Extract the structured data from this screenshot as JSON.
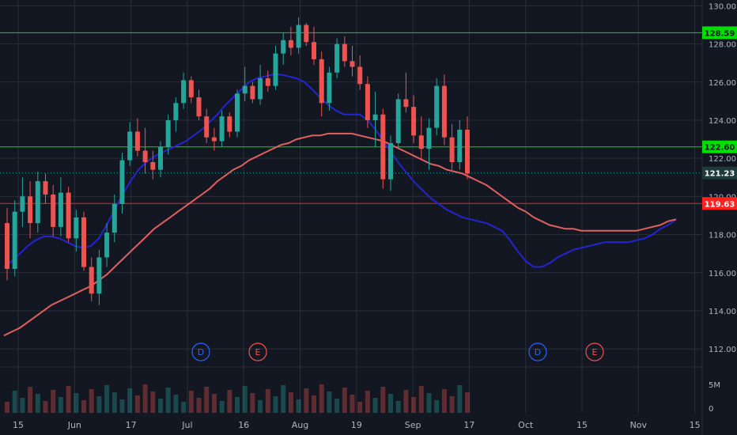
{
  "chart_data": {
    "type": "candlestick",
    "title": "",
    "xlabel": "",
    "ylabel": "",
    "ylim": [
      111.3,
      130.1
    ],
    "y_ticks": [
      112,
      114,
      116,
      118,
      120,
      122,
      124,
      126,
      128,
      130
    ],
    "y_tick_labels": [
      "112.00",
      "114.00",
      "116.00",
      "118.00",
      "120.00",
      "122.00",
      "124.00",
      "126.00",
      "128.00",
      "130.00"
    ],
    "x_tick_labels": [
      "15",
      "Jun",
      "17",
      "Jul",
      "16",
      "Aug",
      "19",
      "Sep",
      "17",
      "Oct",
      "15",
      "Nov",
      "15"
    ],
    "grid": true,
    "colors": {
      "background": "#131722",
      "up": "#26a69a",
      "down": "#ef5350",
      "grid": "#2a2e39",
      "axis_text": "#b2b5be"
    },
    "horizontal_levels": [
      {
        "label": "128.59",
        "value": 128.59,
        "color": "#00e000"
      },
      {
        "label": "122.60",
        "value": 122.6,
        "color": "#00e000"
      },
      {
        "label": "119.63",
        "value": 119.63,
        "color": "#ff2020"
      }
    ],
    "last_price": {
      "label": "121.23",
      "value": 121.23,
      "color": "#26a69a"
    },
    "moving_averages": [
      {
        "color": "#2424d0",
        "values": [
          116.3,
          116.6,
          117,
          117.4,
          117.7,
          117.9,
          117.9,
          117.8,
          117.6,
          117.4,
          117.3,
          117.4,
          117.8,
          118.5,
          119.3,
          120.1,
          120.8,
          121.4,
          121.8,
          122.1,
          122.3,
          122.5,
          122.7,
          122.9,
          123.2,
          123.5,
          123.9,
          124.3,
          124.8,
          125.2,
          125.6,
          126,
          126.2,
          126.3,
          126.4,
          126.4,
          126.3,
          126.2,
          126,
          125.6,
          125.2,
          124.8,
          124.5,
          124.3,
          124.3,
          124.3,
          124,
          123.5,
          122.9,
          122.3,
          121.7,
          121.2,
          120.7,
          120.3,
          119.9,
          119.6,
          119.3,
          119.1,
          118.9,
          118.8,
          118.7,
          118.6,
          118.4,
          118.2,
          117.7,
          117.1,
          116.6,
          116.3,
          116.3,
          116.5,
          116.8,
          117,
          117.2,
          117.3,
          117.4,
          117.5,
          117.6,
          117.6,
          117.6,
          117.6,
          117.7,
          117.8,
          118,
          118.3,
          118.5,
          118.8
        ]
      },
      {
        "color": "#e06060",
        "values": [
          112.7,
          112.9,
          113.1,
          113.4,
          113.7,
          114,
          114.3,
          114.5,
          114.7,
          114.9,
          115.1,
          115.3,
          115.6,
          115.9,
          116.3,
          116.7,
          117.1,
          117.5,
          117.9,
          118.3,
          118.6,
          118.9,
          119.2,
          119.5,
          119.8,
          120.1,
          120.4,
          120.8,
          121.1,
          121.4,
          121.6,
          121.9,
          122.1,
          122.3,
          122.5,
          122.7,
          122.8,
          123,
          123.1,
          123.2,
          123.2,
          123.3,
          123.3,
          123.3,
          123.3,
          123.2,
          123.1,
          123,
          122.9,
          122.7,
          122.5,
          122.3,
          122.1,
          121.9,
          121.7,
          121.6,
          121.4,
          121.3,
          121.2,
          121,
          120.8,
          120.6,
          120.3,
          120,
          119.7,
          119.4,
          119.2,
          118.9,
          118.7,
          118.5,
          118.4,
          118.3,
          118.3,
          118.2,
          118.2,
          118.2,
          118.2,
          118.2,
          118.2,
          118.2,
          118.2,
          118.3,
          118.4,
          118.5,
          118.7,
          118.8
        ]
      }
    ],
    "candles": [
      [
        118.6,
        119.4,
        115.6,
        116.2
      ],
      [
        116.2,
        119.8,
        115.8,
        119.2
      ],
      [
        119.2,
        121.0,
        118.4,
        120.0
      ],
      [
        120.0,
        120.8,
        117.8,
        118.6
      ],
      [
        118.6,
        121.3,
        118.1,
        120.8
      ],
      [
        120.8,
        121.2,
        119.6,
        120.1
      ],
      [
        120.1,
        120.6,
        117.9,
        118.4
      ],
      [
        118.4,
        121.0,
        117.9,
        120.2
      ],
      [
        120.2,
        120.5,
        117.6,
        117.8
      ],
      [
        117.8,
        119.3,
        117.1,
        118.9
      ],
      [
        118.9,
        119.2,
        116.1,
        116.3
      ],
      [
        116.3,
        116.8,
        114.5,
        114.9
      ],
      [
        114.9,
        117.2,
        114.3,
        116.8
      ],
      [
        116.8,
        118.6,
        116.3,
        118.1
      ],
      [
        118.1,
        120.1,
        117.6,
        119.6
      ],
      [
        119.6,
        122.3,
        119.1,
        121.9
      ],
      [
        121.9,
        123.9,
        121.6,
        123.4
      ],
      [
        123.4,
        124.1,
        122.1,
        122.4
      ],
      [
        122.4,
        123.6,
        121.2,
        121.8
      ],
      [
        121.8,
        122.4,
        120.9,
        121.4
      ],
      [
        121.4,
        122.9,
        121.0,
        122.6
      ],
      [
        122.6,
        124.3,
        122.2,
        124.0
      ],
      [
        124.0,
        125.2,
        123.4,
        124.9
      ],
      [
        124.9,
        126.5,
        124.6,
        126.1
      ],
      [
        126.1,
        126.3,
        124.9,
        125.2
      ],
      [
        125.2,
        125.6,
        124.0,
        124.2
      ],
      [
        124.2,
        124.6,
        122.8,
        123.1
      ],
      [
        123.1,
        123.6,
        122.4,
        122.9
      ],
      [
        122.9,
        124.5,
        122.6,
        124.2
      ],
      [
        124.2,
        124.4,
        123.1,
        123.4
      ],
      [
        123.4,
        125.6,
        123.1,
        125.4
      ],
      [
        125.4,
        126.8,
        125.0,
        125.8
      ],
      [
        125.8,
        126.0,
        124.9,
        125.1
      ],
      [
        125.1,
        126.9,
        124.8,
        126.2
      ],
      [
        126.2,
        126.6,
        125.5,
        125.8
      ],
      [
        125.8,
        127.9,
        125.6,
        127.5
      ],
      [
        127.5,
        128.6,
        126.9,
        128.2
      ],
      [
        128.2,
        128.9,
        127.4,
        127.8
      ],
      [
        127.8,
        129.4,
        127.5,
        129.0
      ],
      [
        129.0,
        129.1,
        127.9,
        128.1
      ],
      [
        128.1,
        128.9,
        126.9,
        127.2
      ],
      [
        127.2,
        127.6,
        124.2,
        124.9
      ],
      [
        124.9,
        126.8,
        124.5,
        126.5
      ],
      [
        126.5,
        128.3,
        126.2,
        128.0
      ],
      [
        128.0,
        128.4,
        126.8,
        127.1
      ],
      [
        127.1,
        127.9,
        126.3,
        126.8
      ],
      [
        126.8,
        127.4,
        125.6,
        125.9
      ],
      [
        125.9,
        126.3,
        123.6,
        124.0
      ],
      [
        124.0,
        125.5,
        122.6,
        124.3
      ],
      [
        124.3,
        124.6,
        120.4,
        120.9
      ],
      [
        120.9,
        123.2,
        120.3,
        122.8
      ],
      [
        122.8,
        125.4,
        122.5,
        125.1
      ],
      [
        125.1,
        126.5,
        124.4,
        124.7
      ],
      [
        124.7,
        125.3,
        122.8,
        123.2
      ],
      [
        123.2,
        124.2,
        121.9,
        122.5
      ],
      [
        122.5,
        124.1,
        121.4,
        123.6
      ],
      [
        123.6,
        126.2,
        123.2,
        125.8
      ],
      [
        125.8,
        126.4,
        122.7,
        123.1
      ],
      [
        123.1,
        123.8,
        121.4,
        121.8
      ],
      [
        121.8,
        124.0,
        121.4,
        123.5
      ],
      [
        123.5,
        124.2,
        120.9,
        121.2
      ]
    ],
    "events": [
      {
        "label": "D",
        "color": "#2962ff"
      },
      {
        "label": "E",
        "color": "#ef5350"
      },
      {
        "label": "D",
        "color": "#2962ff"
      },
      {
        "label": "E",
        "color": "#ef5350"
      }
    ],
    "volume_axis_labels": [
      "5M",
      "0"
    ]
  }
}
